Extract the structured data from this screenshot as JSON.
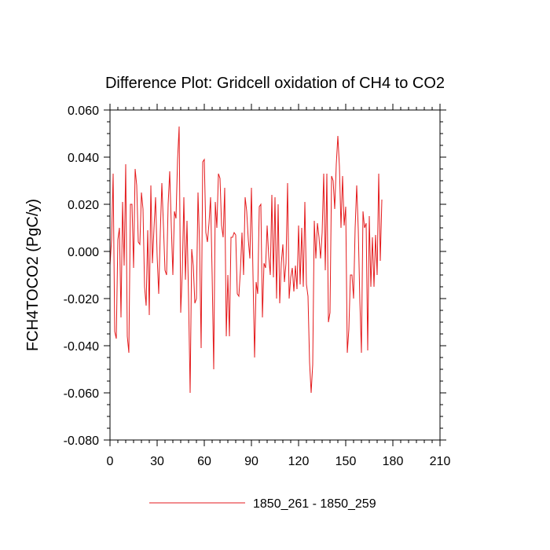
{
  "chart_data": {
    "type": "line",
    "title": "Difference Plot: Gridcell oxidation of CH4 to CO2",
    "xlabel": "",
    "ylabel": "FCH4TOCO2  (PgC/y)",
    "xlim": [
      0,
      210
    ],
    "ylim": [
      -0.08,
      0.06
    ],
    "xticks": [
      0,
      30,
      60,
      90,
      120,
      150,
      180,
      210
    ],
    "xtick_labels": [
      "0",
      "30",
      "60",
      "90",
      "120",
      "150",
      "180",
      "210"
    ],
    "yticks": [
      -0.08,
      -0.06,
      -0.04,
      -0.02,
      0.0,
      0.02,
      0.04,
      0.06
    ],
    "ytick_labels": [
      "-0.080",
      "-0.060",
      "-0.040",
      "-0.020",
      "0.000",
      "0.020",
      "0.040",
      "0.060"
    ],
    "grid": false,
    "legend_position": "bottom-center",
    "series": [
      {
        "name": "1850_261 - 1850_259",
        "color": "#e41a1c",
        "x_start": 0,
        "x_step": 1,
        "values": [
          -0.006,
          0.005,
          0.033,
          -0.034,
          -0.037,
          0.005,
          0.01,
          -0.028,
          0.021,
          -0.006,
          0.037,
          -0.036,
          -0.043,
          0.02,
          0.02,
          -0.007,
          0.035,
          0.028,
          0.004,
          0.003,
          0.025,
          0.018,
          -0.015,
          -0.023,
          0.009,
          -0.027,
          0.028,
          -0.005,
          0.01,
          0.023,
          -0.002,
          -0.018,
          0.008,
          0.029,
          0.011,
          -0.008,
          -0.01,
          0.02,
          0.034,
          0.011,
          -0.01,
          0.017,
          0.014,
          0.039,
          0.053,
          -0.026,
          -0.009,
          0.023,
          -0.012,
          0.013,
          -0.02,
          -0.06,
          0.001,
          -0.006,
          -0.022,
          -0.02,
          0.025,
          0.003,
          -0.041,
          0.038,
          0.039,
          0.008,
          0.004,
          0.012,
          0.023,
          -0.01,
          -0.05,
          0.021,
          0.01,
          0.033,
          0.031,
          0.011,
          0.006,
          0.027,
          -0.036,
          -0.01,
          -0.036,
          0.006,
          0.006,
          0.008,
          0.007,
          -0.018,
          -0.019,
          -0.008,
          0.008,
          -0.01,
          0.023,
          0.017,
          0.005,
          -0.003,
          0.027,
          -0.01,
          -0.045,
          -0.013,
          -0.018,
          0.019,
          0.02,
          -0.028,
          -0.005,
          -0.007,
          0.011,
          -0.002,
          -0.01,
          0.024,
          -0.011,
          0.023,
          -0.02,
          0.02,
          -0.022,
          -0.005,
          0.003,
          -0.013,
          -0.005,
          0.029,
          -0.02,
          -0.011,
          -0.007,
          -0.017,
          -0.006,
          -0.016,
          0.011,
          -0.014,
          0.01,
          -0.015,
          0.021,
          -0.014,
          -0.019,
          -0.047,
          -0.06,
          -0.048,
          0.013,
          -0.003,
          0.012,
          0.006,
          -0.003,
          0.008,
          0.033,
          -0.008,
          0.033,
          -0.03,
          -0.026,
          0.032,
          0.03,
          0.018,
          0.037,
          0.049,
          0.036,
          0.01,
          0.032,
          0.011,
          0.019,
          -0.043,
          -0.033,
          -0.01,
          -0.01,
          -0.02,
          0.01,
          0.028,
          0.009,
          -0.021,
          -0.043,
          0.017,
          0.01,
          0.012,
          -0.042,
          0.015,
          -0.015,
          0.006,
          -0.015,
          0.007,
          -0.01,
          0.033,
          -0.004,
          0.022
        ]
      }
    ]
  }
}
